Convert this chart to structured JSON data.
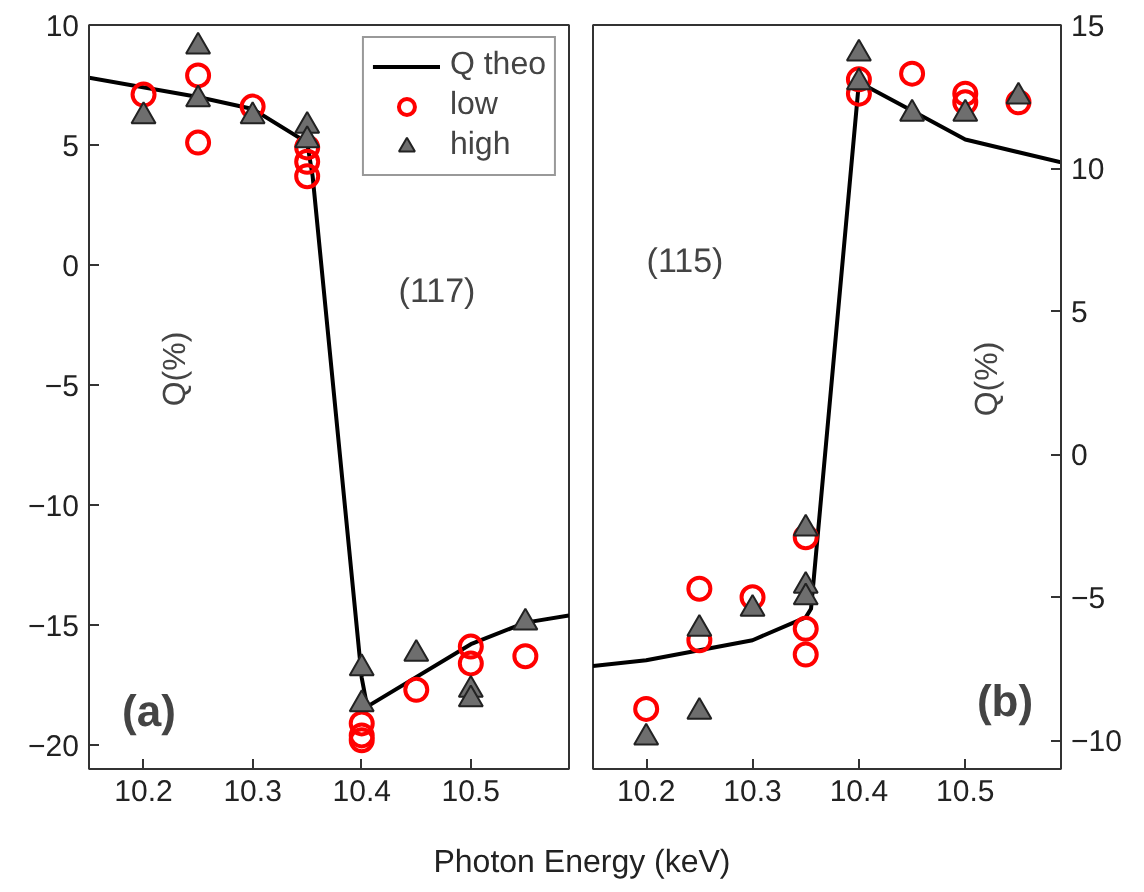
{
  "chart_data": [
    {
      "type": "line",
      "xlabel": "Photon Energy (keV)",
      "ylabel": "Q(%)",
      "xlim": [
        10.15,
        10.59
      ],
      "xticks": [
        10.2,
        10.3,
        10.4,
        10.5
      ],
      "ylim": [
        -21,
        10
      ],
      "yticks": [
        -20,
        -15,
        -10,
        -5,
        0,
        5,
        10
      ],
      "grid": false,
      "legend": "top right",
      "annotations": [
        "(117)",
        "(a)"
      ],
      "series": [
        {
          "name": "Q theo",
          "color": "#000000",
          "line_style": "solid",
          "x": [
            10.15,
            10.25,
            10.3,
            10.35,
            10.355,
            10.4,
            10.405,
            10.5,
            10.55,
            10.59
          ],
          "values": [
            7.8,
            7.0,
            6.5,
            5.1,
            3.7,
            -17.2,
            -18.4,
            -15.8,
            -14.9,
            -14.6
          ]
        },
        {
          "name": "low",
          "type": "scatter",
          "color": "#ff0000",
          "marker": "circle",
          "x": [
            10.2,
            10.25,
            10.25,
            10.3,
            10.35,
            10.35,
            10.35,
            10.4,
            10.4,
            10.4,
            10.45,
            10.5,
            10.5,
            10.55
          ],
          "values": [
            7.1,
            7.9,
            5.1,
            6.6,
            4.9,
            4.3,
            3.7,
            -19.1,
            -19.6,
            -19.8,
            -17.7,
            -15.9,
            -16.6,
            -16.3
          ]
        },
        {
          "name": "high",
          "type": "scatter",
          "color": "#6e6e6e",
          "marker": "triangle",
          "x": [
            10.2,
            10.25,
            10.25,
            10.3,
            10.35,
            10.35,
            10.4,
            10.4,
            10.45,
            10.5,
            10.5,
            10.55
          ],
          "values": [
            6.2,
            9.1,
            6.9,
            6.2,
            5.8,
            5.2,
            -16.8,
            -18.3,
            -16.2,
            -17.7,
            -18.1,
            -14.9
          ]
        }
      ]
    },
    {
      "type": "line",
      "y2label": "Q(%)",
      "xlim": [
        10.15,
        10.59
      ],
      "xticks": [
        10.2,
        10.3,
        10.4,
        10.5
      ],
      "y2lim": [
        -11,
        15
      ],
      "y2ticks": [
        -10,
        -5,
        0,
        5,
        10,
        15
      ],
      "grid": false,
      "annotations": [
        "(115)",
        "(b)"
      ],
      "series": [
        {
          "axis": "y2",
          "color": "#000000",
          "line_style": "solid",
          "x": [
            10.15,
            10.2,
            10.3,
            10.35,
            10.355,
            10.4,
            10.45,
            10.5,
            10.59
          ],
          "values": [
            -7.4,
            -7.2,
            -6.5,
            -5.7,
            -5.4,
            13.0,
            12.0,
            11.0,
            10.2
          ]
        },
        {
          "type": "scatter",
          "axis": "y2",
          "color": "#ff0000",
          "marker": "circle",
          "x": [
            10.2,
            10.25,
            10.25,
            10.3,
            10.35,
            10.35,
            10.35,
            10.4,
            10.4,
            10.45,
            10.5,
            10.5,
            10.55
          ],
          "values": [
            -8.9,
            -4.7,
            -6.5,
            -5.0,
            -2.9,
            -6.1,
            -7.0,
            13.1,
            12.6,
            13.3,
            12.6,
            12.3,
            12.3
          ]
        },
        {
          "type": "scatter",
          "axis": "y2",
          "color": "#6e6e6e",
          "marker": "triangle",
          "x": [
            10.2,
            10.25,
            10.25,
            10.3,
            10.35,
            10.35,
            10.35,
            10.4,
            10.4,
            10.45,
            10.5,
            10.55
          ],
          "values": [
            -9.9,
            -9.0,
            -6.1,
            -5.4,
            -2.6,
            -4.6,
            -5.0,
            14.0,
            13.0,
            11.9,
            11.9,
            12.5
          ]
        }
      ]
    }
  ]
}
